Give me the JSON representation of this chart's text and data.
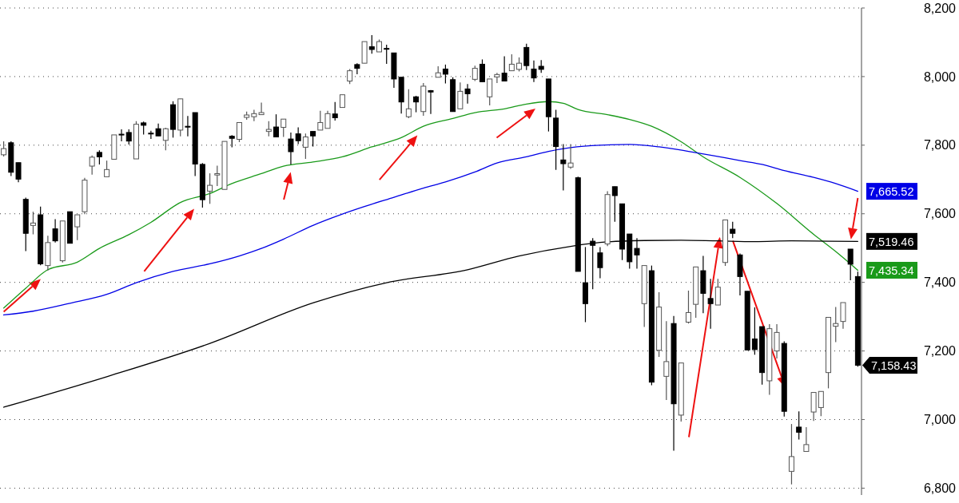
{
  "chart_data": {
    "type": "candlestick",
    "categories": [
      null,
      null,
      null,
      null,
      null,
      null,
      null,
      null,
      null,
      null,
      null,
      null,
      null,
      null,
      null,
      null,
      null,
      null,
      null,
      null,
      null,
      null,
      null,
      null,
      null,
      null,
      null,
      null,
      null,
      null,
      null,
      null,
      null,
      null,
      null,
      null,
      null,
      null,
      null,
      null,
      null,
      null,
      null,
      null,
      null,
      null,
      null,
      null,
      null,
      null,
      null,
      null,
      null,
      null,
      null,
      null,
      null,
      null,
      null,
      null,
      null,
      null,
      null,
      null,
      null,
      null,
      null,
      null,
      null,
      null,
      null,
      null,
      null,
      null,
      null,
      null,
      null,
      null,
      null,
      null,
      null,
      null,
      null,
      null,
      null,
      null,
      null,
      null,
      null,
      null,
      null,
      null,
      null,
      null,
      null,
      null,
      null,
      null,
      null,
      null,
      null,
      null,
      null,
      null,
      null,
      null,
      null,
      null,
      null,
      null,
      null,
      null,
      null,
      null,
      null,
      null,
      null
    ],
    "ohlc": [
      [
        7772,
        7811,
        7767,
        7790
      ],
      [
        7807,
        7811,
        7710,
        7721
      ],
      [
        7749,
        7749,
        7692,
        7701
      ],
      [
        7642,
        7647,
        7491,
        7543
      ],
      [
        7566,
        7606,
        7540,
        7573
      ],
      [
        7597,
        7621,
        7450,
        7454
      ],
      [
        7449,
        7536,
        7434,
        7516
      ],
      [
        7556,
        7584,
        7516,
        7521
      ],
      [
        7463,
        7579,
        7458,
        7579
      ],
      [
        7606,
        7606,
        7514,
        7514
      ],
      [
        7562,
        7597,
        7523,
        7597
      ],
      [
        7606,
        7705,
        7599,
        7698
      ],
      [
        7739,
        7770,
        7714,
        7765
      ],
      [
        7779,
        7785,
        7744,
        7766
      ],
      [
        7708,
        7755,
        7708,
        7729
      ],
      [
        7759,
        7830,
        7759,
        7830
      ],
      [
        7832,
        7846,
        7811,
        7830
      ],
      [
        7837,
        7846,
        7802,
        7812
      ],
      [
        7760,
        7870,
        7760,
        7861
      ],
      [
        7865,
        7869,
        7831,
        7858
      ],
      [
        7835,
        7842,
        7818,
        7833
      ],
      [
        7848,
        7863,
        7827,
        7827
      ],
      [
        7814,
        7851,
        7785,
        7848
      ],
      [
        7918,
        7928,
        7822,
        7846
      ],
      [
        7844,
        7935,
        7826,
        7935
      ],
      [
        7855,
        7885,
        7826,
        7853
      ],
      [
        7895,
        7895,
        7710,
        7745
      ],
      [
        7744,
        7748,
        7618,
        7641
      ],
      [
        7666,
        7718,
        7629,
        7683
      ],
      [
        7713,
        7740,
        7681,
        7717
      ],
      [
        7671,
        7811,
        7671,
        7811
      ],
      [
        7826,
        7829,
        7794,
        7820
      ],
      [
        7817,
        7866,
        7809,
        7866
      ],
      [
        7881,
        7898,
        7874,
        7888
      ],
      [
        7883,
        7903,
        7870,
        7892
      ],
      [
        7889,
        7924,
        7889,
        7895
      ],
      [
        7840,
        7870,
        7826,
        7846
      ],
      [
        7853,
        7890,
        7824,
        7824
      ],
      [
        7852,
        7876,
        7824,
        7876
      ],
      [
        7818,
        7837,
        7744,
        7781
      ],
      [
        7833,
        7852,
        7803,
        7813
      ],
      [
        7794,
        7834,
        7760,
        7824
      ],
      [
        7840,
        7840,
        7796,
        7827
      ],
      [
        7844,
        7900,
        7844,
        7866
      ],
      [
        7849,
        7900,
        7849,
        7892
      ],
      [
        7891,
        7926,
        7872,
        7880
      ],
      [
        7910,
        7947,
        7910,
        7947
      ],
      [
        7987,
        8022,
        7978,
        8017
      ],
      [
        8035,
        8039,
        8007,
        8024
      ],
      [
        8039,
        8102,
        8039,
        8102
      ],
      [
        8087,
        8121,
        8067,
        8079
      ],
      [
        8072,
        8108,
        8072,
        8102
      ],
      [
        8082,
        8093,
        8037,
        8080
      ],
      [
        8069,
        8069,
        7967,
        7993
      ],
      [
        7998,
        7998,
        7892,
        7926
      ],
      [
        7883,
        7963,
        7879,
        7906
      ],
      [
        7941,
        7944,
        7896,
        7926
      ],
      [
        7898,
        7981,
        7886,
        7972
      ],
      [
        7959,
        7961,
        7891,
        7955
      ],
      [
        7998,
        8030,
        7998,
        8011
      ],
      [
        8022,
        8035,
        7980,
        8007
      ],
      [
        7991,
        7998,
        7898,
        7898
      ],
      [
        7906,
        7983,
        7906,
        7957
      ],
      [
        7964,
        7978,
        7921,
        7950
      ],
      [
        7992,
        8032,
        7987,
        8024
      ],
      [
        8036,
        8050,
        7985,
        7985
      ],
      [
        7941,
        7993,
        7916,
        7993
      ],
      [
        7999,
        8011,
        7981,
        8006
      ],
      [
        8010,
        8059,
        7987,
        7987
      ],
      [
        8017,
        8065,
        8017,
        8036
      ],
      [
        8021,
        8056,
        8015,
        8039
      ],
      [
        8085,
        8096,
        8019,
        8032
      ],
      [
        8022,
        8047,
        7984,
        7996
      ],
      [
        8030,
        8048,
        8011,
        8021
      ],
      [
        7993,
        7993,
        7840,
        7883
      ],
      [
        7879,
        7903,
        7728,
        7796
      ],
      [
        7757,
        7803,
        7668,
        7746
      ],
      [
        7736,
        7803,
        7731,
        7748
      ],
      [
        7705,
        7708,
        7432,
        7432
      ],
      [
        7399,
        7503,
        7284,
        7338
      ],
      [
        7520,
        7529,
        7380,
        7508
      ],
      [
        7486,
        7503,
        7412,
        7443
      ],
      [
        7512,
        7666,
        7506,
        7656
      ],
      [
        7679,
        7679,
        7577,
        7653
      ],
      [
        7629,
        7629,
        7465,
        7497
      ],
      [
        7541,
        7541,
        7440,
        7460
      ],
      [
        7499,
        7529,
        7440,
        7480
      ],
      [
        7338,
        7449,
        7270,
        7449
      ],
      [
        7434,
        7449,
        7100,
        7109
      ],
      [
        7202,
        7371,
        7183,
        7328
      ],
      [
        7126,
        7287,
        7057,
        7169
      ],
      [
        7280,
        7302,
        6909,
        7046
      ],
      [
        7013,
        7165,
        6994,
        7165
      ],
      [
        7284,
        7376,
        7280,
        7312
      ],
      [
        7336,
        7445,
        7297,
        7445
      ],
      [
        7434,
        7477,
        7310,
        7368
      ],
      [
        7353,
        7410,
        7265,
        7338
      ],
      [
        7334,
        7410,
        7334,
        7386
      ],
      [
        7458,
        7582,
        7448,
        7582
      ],
      [
        7555,
        7577,
        7529,
        7543
      ],
      [
        7480,
        7484,
        7362,
        7417
      ],
      [
        7374,
        7374,
        7203,
        7203
      ],
      [
        7235,
        7327,
        7189,
        7204
      ],
      [
        7271,
        7271,
        7102,
        7137
      ],
      [
        7113,
        7278,
        7072,
        7265
      ],
      [
        7200,
        7278,
        7178,
        7254
      ],
      [
        7222,
        7228,
        7009,
        7024
      ],
      [
        6849,
        6987,
        6811,
        6892
      ],
      [
        6978,
        7024,
        6942,
        6963
      ],
      [
        6907,
        6978,
        6907,
        6927
      ],
      [
        7022,
        7079,
        6996,
        7079
      ],
      [
        7035,
        7082,
        7010,
        7082
      ],
      [
        7137,
        7298,
        7091,
        7298
      ],
      [
        7272,
        7328,
        7226,
        7280
      ],
      [
        7286,
        7341,
        7265,
        7341
      ],
      [
        7497,
        7497,
        7406,
        7453
      ],
      [
        7417,
        7431,
        7154,
        7158.43
      ]
    ],
    "series": [
      {
        "type": "line",
        "color": "#1a9a1a",
        "values": [
          7325,
          null,
          null,
          7383,
          null,
          null,
          7437,
          null,
          null,
          null,
          7459,
          null,
          null,
          7499,
          null,
          null,
          null,
          7539,
          null,
          null,
          7575,
          null,
          null,
          null,
          7633,
          null,
          null,
          null,
          7659,
          null,
          null,
          7688,
          null,
          null,
          null,
          7717,
          null,
          null,
          7739,
          null,
          null,
          null,
          7751,
          null,
          null,
          null,
          7766,
          null,
          null,
          null,
          7795,
          null,
          null,
          null,
          7822,
          null,
          null,
          7855,
          null,
          null,
          null,
          7878,
          null,
          null,
          7895,
          null,
          null,
          null,
          7906,
          null,
          null,
          7920,
          null,
          null,
          7927,
          null,
          7922,
          null,
          7904,
          null,
          null,
          null,
          7889,
          null,
          null,
          7875,
          null,
          null,
          7855,
          null,
          null,
          null,
          7810,
          null,
          null,
          7766,
          null,
          null,
          null,
          null,
          7706,
          null,
          null,
          null,
          null,
          7630,
          null,
          null,
          null,
          null,
          7540,
          null,
          null,
          7490,
          null,
          null,
          7435.34
        ],
        "value_labels": [
          null,
          null,
          null,
          null,
          null,
          null,
          null,
          null,
          null,
          null,
          null,
          null,
          null,
          null,
          null,
          null,
          null,
          null,
          null,
          null,
          null,
          null,
          null,
          null,
          null,
          null,
          null,
          null,
          null,
          null,
          null,
          null,
          null,
          null,
          null,
          null,
          null,
          null,
          null,
          null,
          null,
          null,
          null,
          null,
          null,
          null,
          null,
          null,
          null,
          null,
          null,
          null,
          null,
          null,
          null,
          null,
          null,
          null,
          null,
          null,
          null,
          null,
          null,
          null,
          null,
          null,
          null,
          null,
          null,
          null,
          null,
          null,
          null,
          null,
          null,
          null,
          null,
          null,
          null,
          null,
          null,
          null,
          null,
          null,
          null,
          null,
          null,
          null,
          null,
          null,
          null,
          null,
          null,
          null,
          null,
          null,
          null,
          null,
          null,
          null,
          null,
          null,
          null,
          null,
          null,
          null,
          null,
          null,
          null,
          null,
          null,
          null,
          null,
          null,
          null,
          null,
          "7,435.34"
        ]
      },
      {
        "type": "line",
        "color": "#0000e6",
        "values": [
          7305,
          null,
          null,
          null,
          7316,
          null,
          null,
          null,
          null,
          7339,
          null,
          null,
          null,
          null,
          7365,
          null,
          null,
          null,
          7399,
          null,
          null,
          null,
          null,
          7432,
          null,
          null,
          null,
          null,
          7454,
          null,
          null,
          null,
          7477,
          null,
          null,
          7499,
          null,
          null,
          7526,
          null,
          null,
          null,
          7566,
          null,
          null,
          null,
          7599,
          null,
          null,
          7621,
          null,
          null,
          null,
          7648,
          null,
          null,
          null,
          7675,
          null,
          null,
          7693,
          null,
          null,
          null,
          7722,
          null,
          null,
          7748,
          null,
          null,
          null,
          7766,
          null,
          null,
          7782,
          null,
          null,
          7793,
          null,
          null,
          null,
          7800,
          null,
          null,
          null,
          7802,
          null,
          null,
          null,
          7795,
          null,
          null,
          null,
          7782,
          null,
          null,
          7771,
          null,
          null,
          null,
          7755,
          null,
          null,
          7744,
          null,
          null,
          7726,
          null,
          null,
          null,
          7706,
          null,
          null,
          7688,
          null,
          null,
          7665.52
        ],
        "value_labels": [
          null,
          null,
          null,
          null,
          null,
          null,
          null,
          null,
          null,
          null,
          null,
          null,
          null,
          null,
          null,
          null,
          null,
          null,
          null,
          null,
          null,
          null,
          null,
          null,
          null,
          null,
          null,
          null,
          null,
          null,
          null,
          null,
          null,
          null,
          null,
          null,
          null,
          null,
          null,
          null,
          null,
          null,
          null,
          null,
          null,
          null,
          null,
          null,
          null,
          null,
          null,
          null,
          null,
          null,
          null,
          null,
          null,
          null,
          null,
          null,
          null,
          null,
          null,
          null,
          null,
          null,
          null,
          null,
          null,
          null,
          null,
          null,
          null,
          null,
          null,
          null,
          null,
          null,
          null,
          null,
          null,
          null,
          null,
          null,
          null,
          null,
          null,
          null,
          null,
          null,
          null,
          null,
          null,
          null,
          null,
          null,
          null,
          null,
          null,
          null,
          null,
          null,
          null,
          null,
          null,
          null,
          null,
          null,
          null,
          null,
          null,
          null,
          null,
          null,
          null,
          null,
          "7,665.52"
        ]
      },
      {
        "type": "line",
        "color": "#000000",
        "values": [
          7036,
          null,
          null,
          null,
          null,
          null,
          null,
          null,
          null,
          null,
          null,
          null,
          null,
          null,
          7125,
          null,
          null,
          null,
          null,
          null,
          null,
          null,
          null,
          null,
          null,
          null,
          null,
          null,
          7222,
          null,
          null,
          null,
          null,
          null,
          null,
          null,
          null,
          null,
          null,
          null,
          null,
          null,
          7340,
          null,
          null,
          null,
          null,
          null,
          null,
          null,
          null,
          null,
          7399,
          null,
          null,
          null,
          null,
          null,
          null,
          null,
          null,
          null,
          null,
          7437,
          null,
          null,
          null,
          null,
          null,
          null,
          7477,
          null,
          null,
          null,
          null,
          null,
          null,
          7505,
          null,
          null,
          null,
          null,
          7518,
          null,
          null,
          null,
          null,
          7522,
          null,
          null,
          null,
          null,
          7523,
          null,
          null,
          null,
          null,
          7521,
          null,
          null,
          null,
          null,
          7519,
          null,
          null,
          null,
          null,
          7521,
          null,
          null,
          null,
          null,
          7520,
          null,
          null,
          null,
          7519.46
        ],
        "value_labels": [
          null,
          null,
          null,
          null,
          null,
          null,
          null,
          null,
          null,
          null,
          null,
          null,
          null,
          null,
          null,
          null,
          null,
          null,
          null,
          null,
          null,
          null,
          null,
          null,
          null,
          null,
          null,
          null,
          null,
          null,
          null,
          null,
          null,
          null,
          null,
          null,
          null,
          null,
          null,
          null,
          null,
          null,
          null,
          null,
          null,
          null,
          null,
          null,
          null,
          null,
          null,
          null,
          null,
          null,
          null,
          null,
          null,
          null,
          null,
          null,
          null,
          null,
          null,
          null,
          null,
          null,
          null,
          null,
          null,
          null,
          null,
          null,
          null,
          null,
          null,
          null,
          null,
          null,
          null,
          null,
          null,
          null,
          null,
          null,
          null,
          null,
          null,
          null,
          null,
          null,
          null,
          null,
          null,
          null,
          null,
          null,
          null,
          null,
          null,
          null,
          null,
          null,
          null,
          null,
          null,
          null,
          null,
          null,
          null,
          null,
          null,
          null,
          null,
          null,
          null,
          null,
          "7,519.46"
        ]
      }
    ],
    "value_labels": [
      null,
      null,
      null,
      null,
      null,
      null,
      null,
      null,
      null,
      null,
      null,
      null,
      null,
      null,
      null,
      null,
      null,
      null,
      null,
      null,
      null,
      null,
      null,
      null,
      null,
      null,
      null,
      null,
      null,
      null,
      null,
      null,
      null,
      null,
      null,
      null,
      null,
      null,
      null,
      null,
      null,
      null,
      null,
      null,
      null,
      null,
      null,
      null,
      null,
      null,
      null,
      null,
      null,
      null,
      null,
      null,
      null,
      null,
      null,
      null,
      null,
      null,
      null,
      null,
      null,
      null,
      null,
      null,
      null,
      null,
      null,
      null,
      null,
      null,
      null,
      null,
      null,
      null,
      null,
      null,
      null,
      null,
      null,
      null,
      null,
      null,
      null,
      null,
      null,
      null,
      null,
      null,
      null,
      null,
      null,
      null,
      null,
      null,
      null,
      null,
      null,
      null,
      null,
      null,
      null,
      null,
      null,
      null,
      null,
      null,
      null,
      null,
      null,
      null,
      null,
      null,
      "7,158.43"
    ],
    "ylim": [
      6780,
      8200
    ],
    "yticks": [
      {
        "value": 6800,
        "label": "6,800"
      },
      {
        "value": 7000,
        "label": "7,000"
      },
      {
        "value": 7200,
        "label": "7,200"
      },
      {
        "value": 7400,
        "label": "7,400"
      },
      {
        "value": 7600,
        "label": "7,600"
      },
      {
        "value": 7800,
        "label": "7,800"
      },
      {
        "value": 8000,
        "label": "8,000"
      },
      {
        "value": 8200,
        "label": "8,200"
      }
    ],
    "grid": "y",
    "tick_labels": "y"
  }
}
